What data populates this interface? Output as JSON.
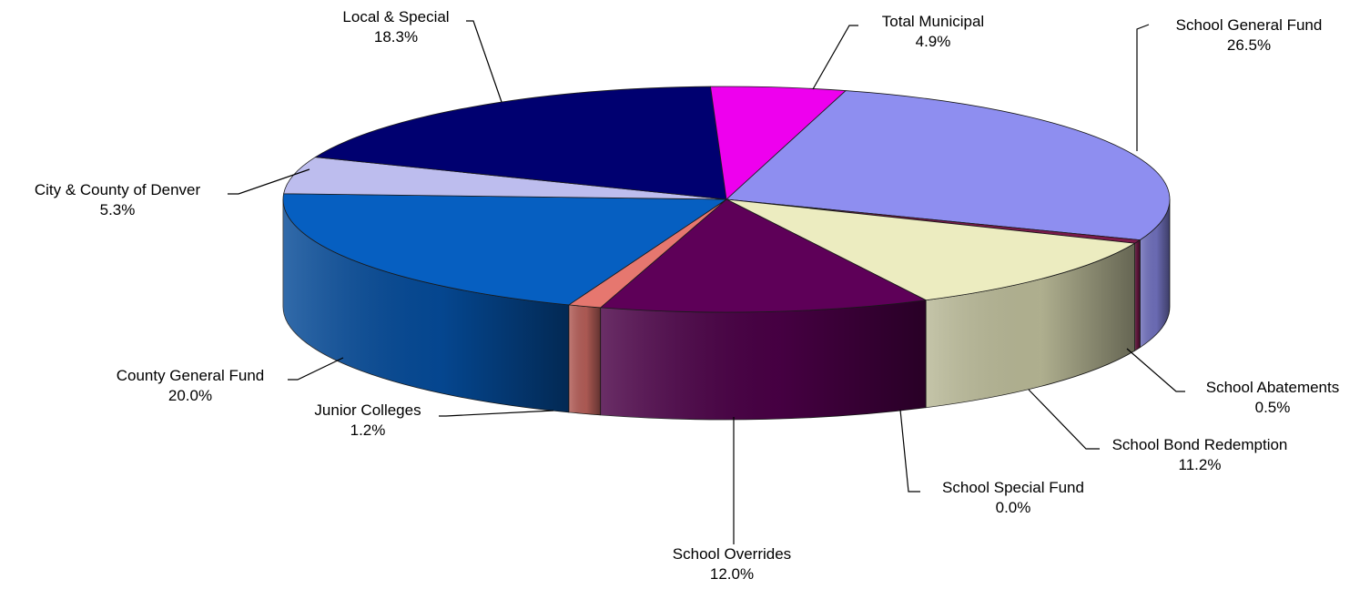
{
  "chart_data": {
    "type": "pie",
    "style": "3d-exploded-none",
    "title": "",
    "slices": [
      {
        "name": "School General Fund",
        "value": 26.5,
        "label": "26.5%",
        "color": "#8e8ef0"
      },
      {
        "name": "School Abatements",
        "value": 0.5,
        "label": "0.5%",
        "color": "#7a1a4a"
      },
      {
        "name": "School Bond Redemption",
        "value": 11.2,
        "label": "11.2%",
        "color": "#ececc0"
      },
      {
        "name": "School Special Fund",
        "value": 0.0,
        "label": "0.0%",
        "color": "#2e2e2e"
      },
      {
        "name": "School Overrides",
        "value": 12.0,
        "label": "12.0%",
        "color": "#5e0058"
      },
      {
        "name": "Junior Colleges",
        "value": 1.2,
        "label": "1.2%",
        "color": "#e6776f"
      },
      {
        "name": "County General Fund",
        "value": 20.0,
        "label": "20.0%",
        "color": "#065fc1"
      },
      {
        "name": "City & County of Denver",
        "value": 5.3,
        "label": "5.3%",
        "color": "#bdbdee"
      },
      {
        "name": "Local & Special",
        "value": 18.3,
        "label": "18.3%",
        "color": "#000070"
      },
      {
        "name": "Total Municipal",
        "value": 4.9,
        "label": "4.9%",
        "color": "#ee00ee"
      }
    ]
  }
}
